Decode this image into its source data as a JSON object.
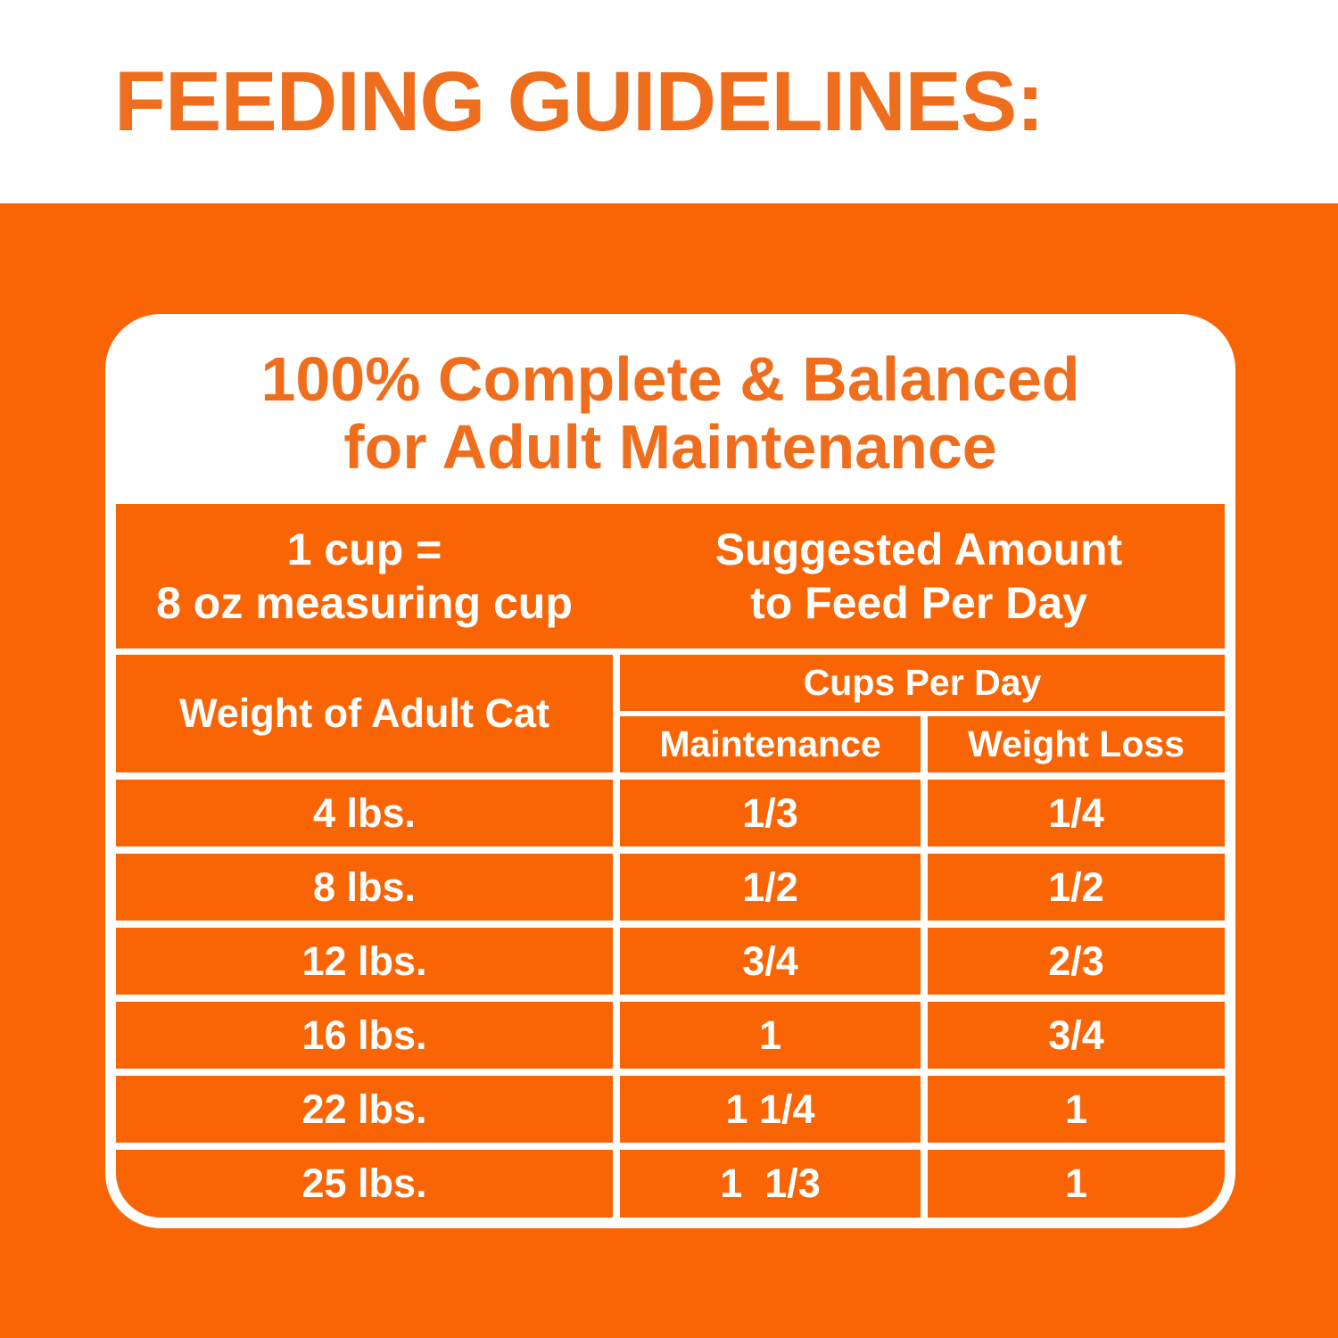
{
  "page_title": "FEEDING GUIDELINES:",
  "card": {
    "heading_line1": "100% Complete & Balanced",
    "heading_line2": "for Adult Maintenance",
    "header": {
      "cup_note_line1": "1 cup =",
      "cup_note_line2": "8 oz measuring cup",
      "suggested_line1": "Suggested Amount",
      "suggested_line2": "to Feed Per Day"
    },
    "columns": {
      "weight": "Weight of Adult Cat",
      "cups_group": "Cups Per Day",
      "maintenance": "Maintenance",
      "weight_loss": "Weight Loss"
    },
    "rows": [
      {
        "weight": "4 lbs.",
        "maintenance": "1/3",
        "weight_loss": "1/4"
      },
      {
        "weight": "8 lbs.",
        "maintenance": "1/2",
        "weight_loss": "1/2"
      },
      {
        "weight": "12 lbs.",
        "maintenance": "3/4",
        "weight_loss": "2/3"
      },
      {
        "weight": "16 lbs.",
        "maintenance": "1",
        "weight_loss": "3/4"
      },
      {
        "weight": "22 lbs.",
        "maintenance": "1 1/4",
        "weight_loss": "1"
      },
      {
        "weight": "25 lbs.",
        "maintenance": "1  1/3",
        "weight_loss": "1"
      }
    ]
  },
  "colors": {
    "orange_background": "#F96505",
    "orange_text": "#EE6E1E",
    "white": "#FFFFFF"
  }
}
